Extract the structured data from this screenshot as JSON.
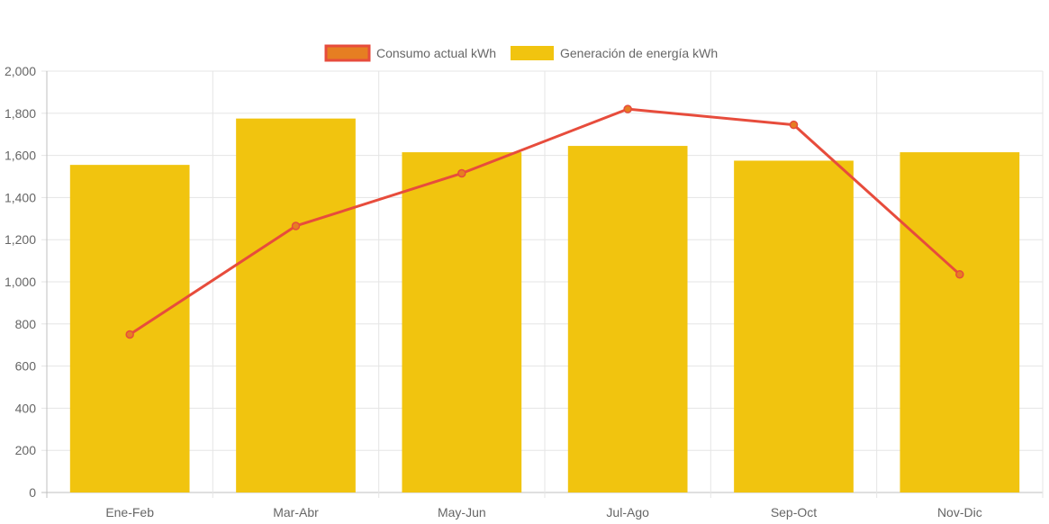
{
  "chart_data": {
    "type": "bar",
    "categories": [
      "Ene-Feb",
      "Mar-Abr",
      "May-Jun",
      "Jul-Ago",
      "Sep-Oct",
      "Nov-Dic"
    ],
    "series": [
      {
        "name": "Consumo actual kWh",
        "type": "line",
        "values": [
          750,
          1265,
          1515,
          1820,
          1745,
          1035
        ],
        "color": "#e74c3c",
        "point_color": "#e67e22"
      },
      {
        "name": "Generación de energía kWh",
        "type": "bar",
        "values": [
          1555,
          1775,
          1615,
          1645,
          1575,
          1615
        ],
        "color": "#f1c40f"
      }
    ],
    "title": "",
    "xlabel": "",
    "ylabel": "",
    "ylim": [
      0,
      2000
    ],
    "yticks": [
      "0",
      "200",
      "400",
      "600",
      "800",
      "1,000",
      "1,200",
      "1,400",
      "1,600",
      "1,800",
      "2,000"
    ],
    "grid": true,
    "legend_position": "top"
  }
}
